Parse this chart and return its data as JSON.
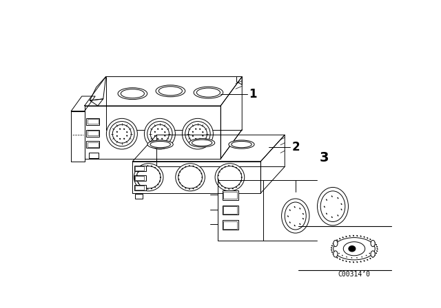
{
  "background_color": "#ffffff",
  "line_color": "#000000",
  "callout_code": "C00314’0",
  "figure_width": 6.4,
  "figure_height": 4.48,
  "lw": 0.7,
  "part1_label": "1",
  "part2_label": "2",
  "part3_label": "3"
}
